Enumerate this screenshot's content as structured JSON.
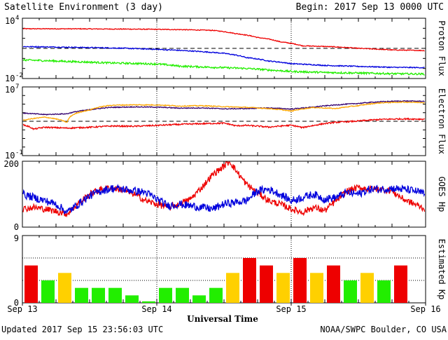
{
  "header": {
    "title": "Satellite Environment (3 day)",
    "begin": "Begin:  2017 Sep 13 0000 UTC"
  },
  "footer": {
    "updated": "Updated 2017 Sep 15 23:56:03 UTC",
    "credit": "NOAA/SWPC Boulder, CO USA"
  },
  "colors": {
    "red": "#ee0000",
    "blue": "#0000dd",
    "green": "#22ee00",
    "orange": "#ffa500",
    "purple": "#33006e",
    "kp_green": "#22ee00",
    "kp_yellow": "#ffd000",
    "kp_red": "#ee0000"
  },
  "chart_data": [
    {
      "id": "proton",
      "type": "line",
      "ylabel": "Proton Flux",
      "yscale": "log",
      "ylim": [
        0.01,
        10000
      ],
      "yticks": [
        {
          "value": 10000,
          "base": "10",
          "exp": "4"
        },
        {
          "value": 0.01,
          "base": "10",
          "exp": "-2"
        }
      ],
      "threshold": 10,
      "x_unit": "hours since Sep 13 0000 UTC",
      "xlim": [
        0,
        72
      ],
      "series": [
        {
          "color": "#ee0000",
          "noise": 0.04,
          "x": [
            0,
            10,
            20,
            28,
            34,
            38,
            42,
            46,
            50,
            56,
            60,
            66,
            72
          ],
          "y": [
            900,
            880,
            820,
            740,
            620,
            300,
            120,
            45,
            18,
            14,
            10,
            7,
            6
          ]
        },
        {
          "color": "#0000dd",
          "noise": 0.05,
          "x": [
            0,
            8,
            16,
            24,
            30,
            36,
            40,
            44,
            48,
            54,
            60,
            66,
            72
          ],
          "y": [
            15,
            13,
            11,
            8,
            5.5,
            3.2,
            1.2,
            0.55,
            0.3,
            0.2,
            0.16,
            0.13,
            0.12
          ]
        },
        {
          "color": "#22ee00",
          "noise": 0.09,
          "x": [
            0,
            8,
            16,
            24,
            28,
            34,
            40,
            44,
            48,
            54,
            60,
            66,
            72
          ],
          "y": [
            0.7,
            0.5,
            0.35,
            0.28,
            0.17,
            0.13,
            0.1,
            0.07,
            0.05,
            0.04,
            0.035,
            0.03,
            0.028
          ]
        }
      ]
    },
    {
      "id": "electron",
      "type": "line",
      "ylabel": "Electron Flux",
      "yscale": "log",
      "ylim": [
        0.1,
        10000000
      ],
      "yticks": [
        {
          "value": 10000000,
          "base": "10",
          "exp": "7"
        },
        {
          "value": 0.1,
          "base": "10",
          "exp": "-1"
        }
      ],
      "threshold": 1000,
      "x_unit": "hours since Sep 13 0000 UTC",
      "xlim": [
        0,
        72
      ],
      "series": [
        {
          "color": "#ee0000",
          "noise": 0.08,
          "x": [
            0,
            2,
            4,
            8,
            12,
            16,
            20,
            24,
            28,
            32,
            36,
            38,
            40,
            44,
            48,
            50,
            52,
            56,
            60,
            64,
            68,
            72
          ],
          "y": [
            400,
            120,
            200,
            160,
            200,
            280,
            260,
            330,
            430,
            520,
            600,
            300,
            330,
            210,
            340,
            180,
            320,
            750,
            1050,
            1650,
            1900,
            1750
          ]
        },
        {
          "color": "#33006e",
          "noise": 0.05,
          "x": [
            0,
            4,
            8,
            12,
            16,
            20,
            24,
            28,
            32,
            36,
            40,
            44,
            48,
            52,
            56,
            60,
            64,
            68,
            72
          ],
          "y": [
            9000,
            6000,
            7500,
            22000,
            42000,
            47000,
            44000,
            34000,
            36000,
            28000,
            30000,
            36000,
            26000,
            45000,
            80000,
            120000,
            190000,
            230000,
            210000
          ]
        },
        {
          "color": "#ffa500",
          "noise": 0.05,
          "x": [
            0,
            4,
            8,
            12,
            16,
            20,
            24,
            28,
            32,
            36,
            40,
            44,
            48,
            52,
            56,
            60,
            64,
            68,
            72
          ],
          "y": [
            1200,
            3000,
            700,
            20000,
            75000,
            82000,
            80000,
            60000,
            65000,
            50000,
            42000,
            30000,
            15000,
            40000,
            30000,
            65000,
            140000,
            170000,
            150000
          ]
        }
      ]
    },
    {
      "id": "hp",
      "type": "line",
      "ylabel": "GOES Hp",
      "yscale": "linear",
      "ylim": [
        0,
        200
      ],
      "yticks": [
        {
          "value": 200,
          "label": "200"
        },
        {
          "value": 0,
          "label": "0"
        }
      ],
      "x_unit": "hours since Sep 13 0000 UTC",
      "xlim": [
        0,
        72
      ],
      "series": [
        {
          "color": "#ee0000",
          "noise": 2.5,
          "x": [
            0,
            2,
            4,
            6,
            8,
            10,
            12,
            14,
            16,
            18,
            20,
            22,
            24,
            26,
            28,
            30,
            32,
            34,
            36,
            37,
            38,
            40,
            42,
            44,
            46,
            48,
            50,
            52,
            54,
            56,
            58,
            60,
            62,
            64,
            66,
            68,
            70,
            72
          ],
          "y": [
            55,
            60,
            55,
            48,
            40,
            72,
            100,
            115,
            120,
            112,
            100,
            80,
            70,
            60,
            70,
            85,
            120,
            160,
            185,
            200,
            175,
            130,
            105,
            80,
            70,
            55,
            45,
            60,
            50,
            80,
            110,
            120,
            115,
            115,
            110,
            85,
            70,
            55
          ]
        },
        {
          "color": "#0000dd",
          "noise": 3.0,
          "x": [
            0,
            2,
            4,
            6,
            8,
            10,
            12,
            14,
            16,
            18,
            20,
            22,
            24,
            26,
            28,
            30,
            32,
            34,
            36,
            38,
            40,
            42,
            44,
            46,
            48,
            50,
            52,
            54,
            56,
            58,
            60,
            62,
            64,
            66,
            68,
            70,
            72
          ],
          "y": [
            100,
            90,
            80,
            70,
            45,
            70,
            95,
            110,
            118,
            115,
            110,
            105,
            85,
            65,
            70,
            65,
            60,
            55,
            70,
            75,
            80,
            110,
            115,
            100,
            80,
            90,
            100,
            85,
            90,
            105,
            100,
            115,
            115,
            118,
            115,
            110,
            100
          ]
        }
      ]
    },
    {
      "id": "kp",
      "type": "bar",
      "ylabel": "Estimated Kp",
      "ylim": [
        0,
        9
      ],
      "yticks": [
        {
          "value": 9,
          "label": "9"
        },
        {
          "value": 0,
          "label": "0"
        }
      ],
      "x_unit": "3-hour intervals starting Sep 13 0000 UTC",
      "values": [
        5,
        3,
        4,
        2,
        2,
        2,
        1,
        0.2,
        2,
        2,
        1,
        2,
        4,
        6,
        5,
        4,
        6,
        4,
        5,
        3,
        4,
        3,
        5,
        0
      ],
      "bar_colors": [
        "#ee0000",
        "#22ee00",
        "#ffd000",
        "#22ee00",
        "#22ee00",
        "#22ee00",
        "#22ee00",
        "#22ee00",
        "#22ee00",
        "#22ee00",
        "#22ee00",
        "#22ee00",
        "#ffd000",
        "#ee0000",
        "#ee0000",
        "#ffd000",
        "#ee0000",
        "#ffd000",
        "#ee0000",
        "#22ee00",
        "#ffd000",
        "#22ee00",
        "#ee0000",
        "#ffffff"
      ]
    }
  ],
  "xaxis": {
    "title": "Universal Time",
    "ticks": [
      {
        "hour": 0,
        "label": "Sep 13"
      },
      {
        "hour": 24,
        "label": "Sep 14"
      },
      {
        "hour": 48,
        "label": "Sep 15"
      },
      {
        "hour": 72,
        "label": "Sep 16"
      }
    ]
  }
}
